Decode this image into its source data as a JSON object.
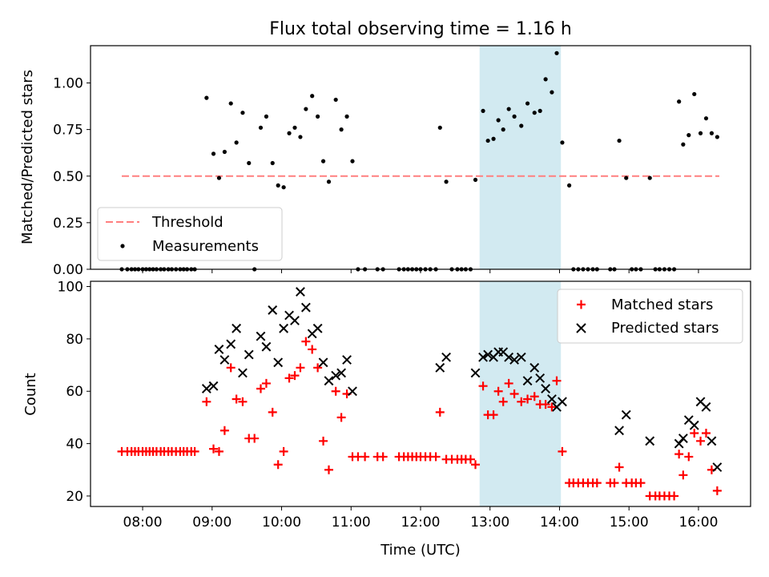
{
  "chart_data": {
    "type": "scatter",
    "title": "Flux total observing time = 1.16 h",
    "xlabel": "Time (UTC)",
    "x_tick_labels": [
      "08:00",
      "09:00",
      "10:00",
      "11:00",
      "12:00",
      "13:00",
      "14:00",
      "15:00",
      "16:00"
    ],
    "xlim_hours": [
      7.25,
      16.75
    ],
    "highlight_span_hours": [
      12.85,
      14.02
    ],
    "colors": {
      "highlight": "#add8e6",
      "threshold": "#ff7f7f",
      "measurements": "#000000",
      "matched": "#ff0000",
      "predicted": "#000000"
    },
    "panels": [
      {
        "ylabel": "Matched/Predicted stars",
        "ylim": [
          0,
          1.2
        ],
        "y_tick_labels": [
          "0.00",
          "0.25",
          "0.50",
          "0.75",
          "1.00"
        ],
        "legend_position": "lower-left",
        "threshold": {
          "name": "Threshold",
          "value": 0.5,
          "x_range": [
            7.7,
            16.3
          ]
        },
        "series": [
          {
            "name": "Measurements",
            "x": [
              7.7,
              7.78,
              7.84,
              7.89,
              7.94,
              8.0,
              8.05,
              8.1,
              8.15,
              8.2,
              8.26,
              8.31,
              8.37,
              8.42,
              8.48,
              8.54,
              8.59,
              8.64,
              8.7,
              8.75,
              8.92,
              9.02,
              9.1,
              9.18,
              9.27,
              9.35,
              9.44,
              9.53,
              9.61,
              9.7,
              9.78,
              9.87,
              9.95,
              10.03,
              10.11,
              10.19,
              10.27,
              10.35,
              10.44,
              10.52,
              10.6,
              10.68,
              10.78,
              10.86,
              10.94,
              11.02,
              11.1,
              11.2,
              11.38,
              11.46,
              11.69,
              11.76,
              11.82,
              11.88,
              11.94,
              12.0,
              12.07,
              12.14,
              12.22,
              12.28,
              12.37,
              12.45,
              12.53,
              12.59,
              12.65,
              12.72,
              12.79,
              12.9,
              12.97,
              13.05,
              13.12,
              13.19,
              13.27,
              13.35,
              13.45,
              13.54,
              13.64,
              13.72,
              13.8,
              13.89,
              13.96,
              14.04,
              14.14,
              14.2,
              14.27,
              14.34,
              14.41,
              14.48,
              14.54,
              14.73,
              14.79,
              14.86,
              14.96,
              15.04,
              15.1,
              15.17,
              15.3,
              15.38,
              15.44,
              15.51,
              15.58,
              15.65,
              15.72,
              15.78,
              15.86,
              15.94,
              16.03,
              16.11,
              16.19,
              16.27
            ],
            "y": [
              0.0,
              0.0,
              0.0,
              0.0,
              0.0,
              0.0,
              0.0,
              0.0,
              0.0,
              0.0,
              0.0,
              0.0,
              0.0,
              0.0,
              0.0,
              0.0,
              0.0,
              0.0,
              0.0,
              0.0,
              0.92,
              0.62,
              0.49,
              0.63,
              0.89,
              0.68,
              0.84,
              0.57,
              0.0,
              0.76,
              0.82,
              0.57,
              0.45,
              0.44,
              0.73,
              0.76,
              0.71,
              0.86,
              0.93,
              0.82,
              0.58,
              0.47,
              0.91,
              0.75,
              0.82,
              0.58,
              0.0,
              0.0,
              0.0,
              0.0,
              0.0,
              0.0,
              0.0,
              0.0,
              0.0,
              0.0,
              0.0,
              0.0,
              0.0,
              0.76,
              0.47,
              0.0,
              0.0,
              0.0,
              0.0,
              0.0,
              0.48,
              0.85,
              0.69,
              0.7,
              0.8,
              0.75,
              0.86,
              0.82,
              0.77,
              0.89,
              0.84,
              0.85,
              1.02,
              0.95,
              1.16,
              0.68,
              0.45,
              0.0,
              0.0,
              0.0,
              0.0,
              0.0,
              0.0,
              0.0,
              0.0,
              0.69,
              0.49,
              0.0,
              0.0,
              0.0,
              0.49,
              0.0,
              0.0,
              0.0,
              0.0,
              0.0,
              0.9,
              0.67,
              0.72,
              0.94,
              0.73,
              0.81,
              0.73,
              0.71
            ]
          }
        ]
      },
      {
        "ylabel": "Count",
        "ylim": [
          16,
          102
        ],
        "y_tick_labels": [
          "20",
          "40",
          "60",
          "80",
          "100"
        ],
        "legend_position": "upper-right",
        "series": [
          {
            "name": "Matched stars",
            "marker": "plus",
            "x": [
              7.7,
              7.78,
              7.84,
              7.89,
              7.94,
              8.0,
              8.05,
              8.1,
              8.15,
              8.2,
              8.26,
              8.31,
              8.37,
              8.42,
              8.48,
              8.54,
              8.59,
              8.64,
              8.7,
              8.75,
              8.92,
              9.02,
              9.1,
              9.18,
              9.27,
              9.35,
              9.44,
              9.53,
              9.61,
              9.7,
              9.78,
              9.87,
              9.95,
              10.03,
              10.11,
              10.19,
              10.27,
              10.35,
              10.44,
              10.52,
              10.6,
              10.68,
              10.78,
              10.86,
              10.94,
              11.02,
              11.1,
              11.2,
              11.38,
              11.46,
              11.69,
              11.76,
              11.82,
              11.88,
              11.94,
              12.0,
              12.07,
              12.14,
              12.22,
              12.28,
              12.37,
              12.45,
              12.53,
              12.59,
              12.65,
              12.72,
              12.79,
              12.9,
              12.97,
              13.05,
              13.12,
              13.19,
              13.27,
              13.35,
              13.45,
              13.54,
              13.64,
              13.72,
              13.8,
              13.89,
              13.96,
              14.04,
              14.14,
              14.2,
              14.27,
              14.34,
              14.41,
              14.48,
              14.54,
              14.73,
              14.79,
              14.86,
              14.96,
              15.04,
              15.1,
              15.17,
              15.3,
              15.38,
              15.44,
              15.51,
              15.58,
              15.65,
              15.72,
              15.78,
              15.86,
              15.94,
              16.03,
              16.11,
              16.19,
              16.27
            ],
            "y": [
              37,
              37,
              37,
              37,
              37,
              37,
              37,
              37,
              37,
              37,
              37,
              37,
              37,
              37,
              37,
              37,
              37,
              37,
              37,
              37,
              56,
              38,
              37,
              45,
              69,
              57,
              56,
              42,
              42,
              61,
              63,
              52,
              32,
              37,
              65,
              66,
              69,
              79,
              76,
              69,
              41,
              30,
              60,
              50,
              59,
              35,
              35,
              35,
              35,
              35,
              35,
              35,
              35,
              35,
              35,
              35,
              35,
              35,
              35,
              52,
              34,
              34,
              34,
              34,
              34,
              34,
              32,
              62,
              51,
              51,
              60,
              56,
              63,
              59,
              56,
              57,
              58,
              55,
              55,
              54,
              64,
              37,
              25,
              25,
              25,
              25,
              25,
              25,
              25,
              25,
              25,
              31,
              25,
              25,
              25,
              25,
              20,
              20,
              20,
              20,
              20,
              20,
              36,
              28,
              35,
              44,
              41,
              44,
              30,
              22
            ]
          },
          {
            "name": "Predicted stars",
            "marker": "cross",
            "x": [
              8.92,
              9.02,
              9.1,
              9.18,
              9.27,
              9.35,
              9.44,
              9.53,
              9.7,
              9.78,
              9.87,
              9.95,
              10.03,
              10.11,
              10.19,
              10.27,
              10.35,
              10.44,
              10.52,
              10.6,
              10.68,
              10.78,
              10.86,
              10.94,
              11.02,
              12.28,
              12.37,
              12.79,
              12.9,
              12.97,
              13.05,
              13.12,
              13.19,
              13.27,
              13.35,
              13.45,
              13.54,
              13.64,
              13.72,
              13.8,
              13.89,
              13.96,
              14.04,
              14.86,
              14.96,
              15.3,
              15.72,
              15.78,
              15.86,
              15.94,
              16.03,
              16.11,
              16.19,
              16.27
            ],
            "y": [
              61,
              62,
              76,
              72,
              78,
              84,
              67,
              74,
              81,
              77,
              91,
              71,
              84,
              89,
              87,
              98,
              92,
              82,
              84,
              71,
              64,
              66,
              67,
              72,
              60,
              69,
              73,
              67,
              73,
              74,
              73,
              75,
              75,
              73,
              72,
              73,
              64,
              69,
              65,
              61,
              57,
              54,
              56,
              45,
              51,
              41,
              40,
              42,
              49,
              47,
              56,
              54,
              41,
              31
            ]
          }
        ]
      }
    ]
  }
}
